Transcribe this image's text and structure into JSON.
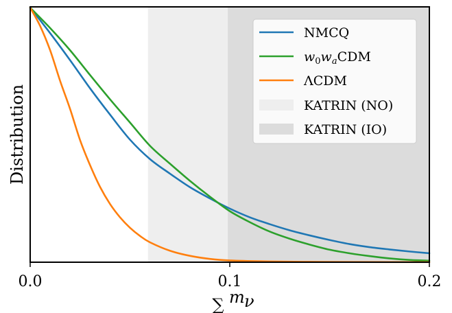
{
  "chart_data": {
    "type": "line",
    "title": "",
    "xlabel": "∑m_ν",
    "xlabel_parts": {
      "sum": "∑",
      "m": "m",
      "sub": "ν"
    },
    "ylabel": "Distribution",
    "xlim": [
      0.0,
      0.2
    ],
    "ylim": [
      0.0,
      1.0
    ],
    "x_ticks": [
      0.0,
      0.1,
      0.2
    ],
    "x_tick_labels": [
      "0.0",
      "0.1",
      "0.2"
    ],
    "y_ticks_shown": false,
    "grid": false,
    "legend_position": "top-right",
    "shaded_regions": [
      {
        "name": "KATRIN (NO)",
        "x_start": 0.059,
        "x_end": 0.2,
        "color": "#eeeeee"
      },
      {
        "name": "KATRIN (IO)",
        "x_start": 0.099,
        "x_end": 0.2,
        "color": "#dcdcdc"
      }
    ],
    "series": [
      {
        "name": "NMCQ",
        "color": "#1f77b4",
        "x": [
          0.0,
          0.01,
          0.02,
          0.03,
          0.04,
          0.05,
          0.06,
          0.07,
          0.08,
          0.09,
          0.1,
          0.11,
          0.12,
          0.13,
          0.14,
          0.15,
          0.16,
          0.17,
          0.18,
          0.19,
          0.2
        ],
        "y": [
          0.997,
          0.897,
          0.791,
          0.681,
          0.578,
          0.48,
          0.404,
          0.347,
          0.294,
          0.25,
          0.21,
          0.176,
          0.149,
          0.125,
          0.105,
          0.087,
          0.071,
          0.059,
          0.05,
          0.042,
          0.035
        ]
      },
      {
        "name": "w_0w_aCDM",
        "color": "#2ca02c",
        "x": [
          0.0,
          0.01,
          0.02,
          0.03,
          0.04,
          0.05,
          0.06,
          0.07,
          0.08,
          0.09,
          0.1,
          0.11,
          0.12,
          0.13,
          0.14,
          0.15,
          0.16,
          0.17,
          0.18,
          0.19,
          0.2
        ],
        "y": [
          0.997,
          0.917,
          0.83,
          0.733,
          0.638,
          0.547,
          0.456,
          0.386,
          0.319,
          0.257,
          0.2,
          0.157,
          0.12,
          0.092,
          0.069,
          0.049,
          0.035,
          0.024,
          0.015,
          0.009,
          0.006
        ]
      },
      {
        "name": "ΛCDM",
        "color": "#ff7f0e",
        "x": [
          0.0,
          0.005,
          0.01,
          0.015,
          0.02,
          0.025,
          0.03,
          0.035,
          0.04,
          0.045,
          0.05,
          0.055,
          0.06,
          0.07,
          0.08,
          0.09,
          0.1,
          0.12,
          0.14,
          0.16,
          0.2
        ],
        "y": [
          0.997,
          0.925,
          0.83,
          0.71,
          0.6,
          0.478,
          0.38,
          0.295,
          0.228,
          0.176,
          0.135,
          0.103,
          0.078,
          0.045,
          0.025,
          0.013,
          0.007,
          0.003,
          0.0015,
          0.0008,
          0.0005
        ]
      }
    ],
    "legend": [
      {
        "label": "NMCQ",
        "kind": "line",
        "color": "#1f77b4"
      },
      {
        "label": "w_0w_aCDM",
        "kind": "line",
        "color": "#2ca02c",
        "parts": {
          "w": "w",
          "sub0": "0",
          "sub_a": "a",
          "tail": "CDM"
        }
      },
      {
        "label": "ΛCDM",
        "kind": "line",
        "color": "#ff7f0e"
      },
      {
        "label": "KATRIN (NO)",
        "kind": "patch",
        "color": "#eeeeee"
      },
      {
        "label": "KATRIN (IO)",
        "kind": "patch",
        "color": "#dcdcdc"
      }
    ]
  }
}
